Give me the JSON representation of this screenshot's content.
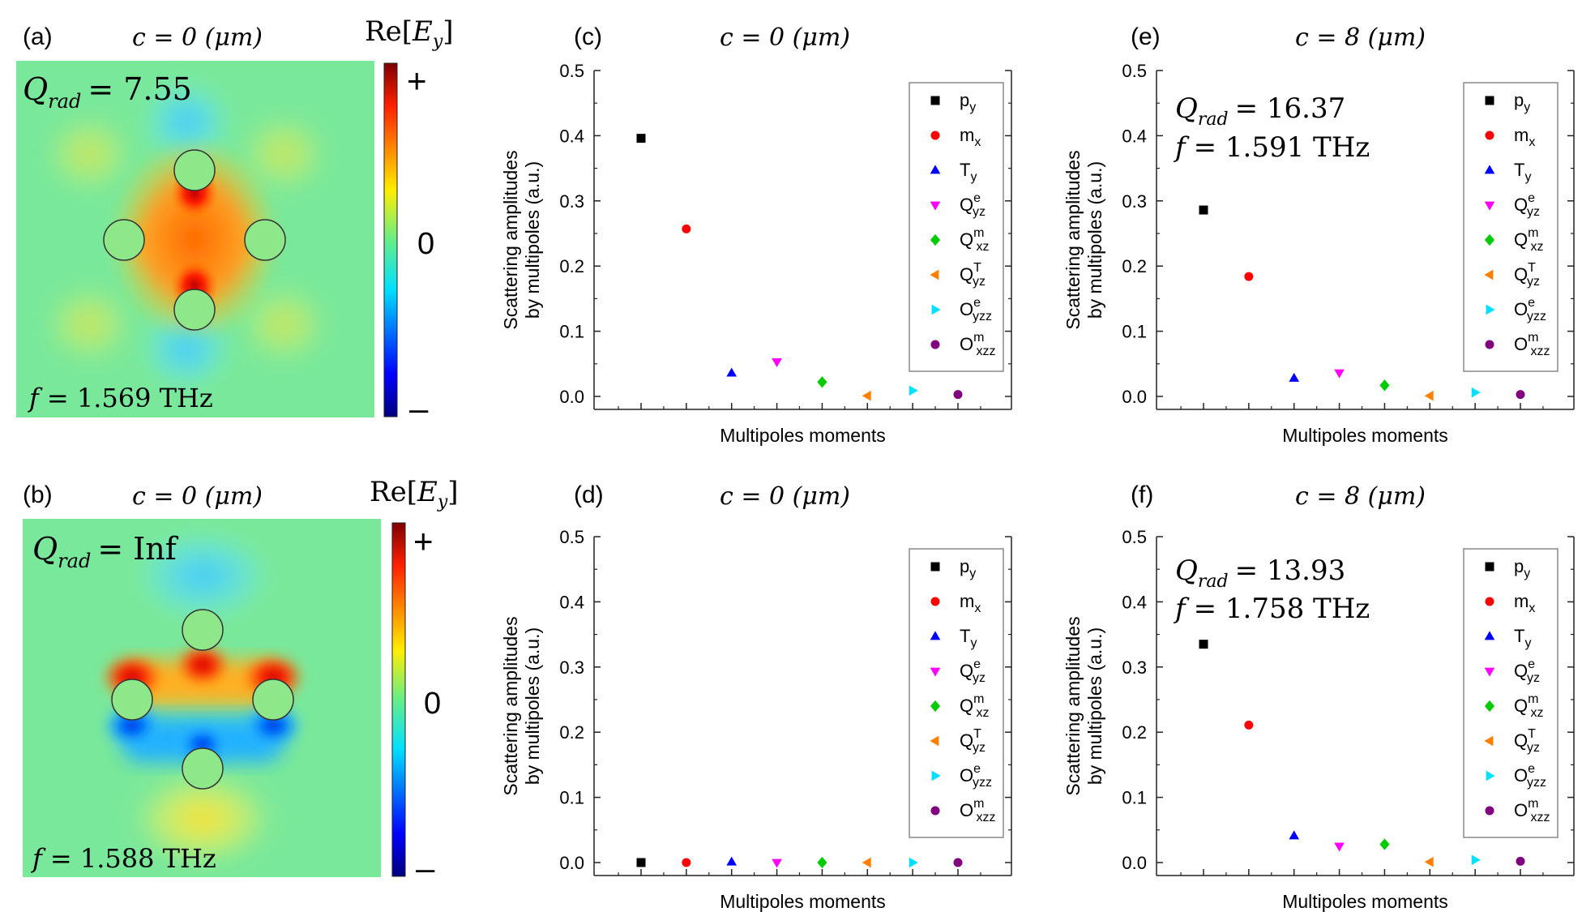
{
  "figure": {
    "panels": {
      "a": {
        "label": "(a)",
        "title": "c = 0 (μm)",
        "q_symbol": "Q",
        "q_sub": "rad",
        "q_value": "= 7.55",
        "f_symbol": "f",
        "f_value": "= 1.569 THz",
        "colorbar": {
          "title_pre": "Re[",
          "title_sym": "E",
          "title_sub": "y",
          "title_post": "]",
          "plus": "+",
          "zero": "0",
          "minus": "–"
        }
      },
      "b": {
        "label": "(b)",
        "title": "c = 0 (μm)",
        "q_symbol": "Q",
        "q_sub": "rad",
        "q_value": "= Inf",
        "f_symbol": "f",
        "f_value": "= 1.588 THz",
        "colorbar": {
          "title_pre": "Re[",
          "title_sym": "E",
          "title_sub": "y",
          "title_post": "]",
          "plus": "+",
          "zero": "0",
          "minus": "–"
        }
      },
      "c": {
        "label": "(c)",
        "title": "c = 0 (μm)"
      },
      "d": {
        "label": "(d)",
        "title": "c = 0 (μm)"
      },
      "e": {
        "label": "(e)",
        "title": "c = 8 (μm)",
        "q_symbol": "Q",
        "q_sub": "rad",
        "q_value": "= 16.37",
        "f_symbol": "f",
        "f_value": "= 1.591 THz"
      },
      "f": {
        "label": "(f)",
        "title": "c = 8 (μm)",
        "q_symbol": "Q",
        "q_sub": "rad",
        "q_value": "= 13.93",
        "f_symbol": "f",
        "f_value": "= 1.758 THz"
      }
    },
    "legend": [
      {
        "base": "p",
        "sub": "y",
        "sup": "",
        "color": "#000000",
        "marker": "square"
      },
      {
        "base": "m",
        "sub": "x",
        "sup": "",
        "color": "#ff0000",
        "marker": "circle"
      },
      {
        "base": "T",
        "sub": "y",
        "sup": "",
        "color": "#0000ff",
        "marker": "triangle-up"
      },
      {
        "base": "Q",
        "sub": "yz",
        "sup": "e",
        "color": "#ff00ff",
        "marker": "triangle-down"
      },
      {
        "base": "Q",
        "sub": "xz",
        "sup": "m",
        "color": "#00cc00",
        "marker": "diamond"
      },
      {
        "base": "Q",
        "sub": "yz",
        "sup": "T",
        "color": "#ff8000",
        "marker": "triangle-left"
      },
      {
        "base": "O",
        "sub": "yzz",
        "sup": "e",
        "color": "#00e0ff",
        "marker": "triangle-right"
      },
      {
        "base": "O",
        "sub": "xzz",
        "sup": "m",
        "color": "#800080",
        "marker": "circle"
      }
    ]
  },
  "chart_data": [
    {
      "panel": "c",
      "type": "scatter",
      "title": "c = 0 (μm)",
      "xlabel": "Multipoles moments",
      "ylabel_line1": "Scattering amplitudes",
      "ylabel_line2": "by multipoles (a.u.)",
      "ylim": [
        0,
        0.5
      ],
      "yticks": [
        "0.0",
        "0.1",
        "0.2",
        "0.3",
        "0.4",
        "0.5"
      ],
      "series": [
        "p_y",
        "m_x",
        "T_y",
        "Q_yz^e",
        "Q_xz^m",
        "Q_yz^T",
        "O_yzz^e",
        "O_xzz^m"
      ],
      "values": [
        0.396,
        0.257,
        0.036,
        0.053,
        0.022,
        0.001,
        0.009,
        0.003
      ]
    },
    {
      "panel": "e",
      "type": "scatter",
      "title": "c = 8 (μm)",
      "xlabel": "Multipoles moments",
      "ylabel_line1": "Scattering amplitudes",
      "ylabel_line2": "by multipoles (a.u.)",
      "ylim": [
        0,
        0.5
      ],
      "yticks": [
        "0.0",
        "0.1",
        "0.2",
        "0.3",
        "0.4",
        "0.5"
      ],
      "series": [
        "p_y",
        "m_x",
        "T_y",
        "Q_yz^e",
        "Q_xz^m",
        "Q_yz^T",
        "O_yzz^e",
        "O_xzz^m"
      ],
      "values": [
        0.286,
        0.184,
        0.028,
        0.036,
        0.017,
        0.001,
        0.006,
        0.003
      ]
    },
    {
      "panel": "d",
      "type": "scatter",
      "title": "c = 0 (μm)",
      "xlabel": "Multipoles moments",
      "ylabel_line1": "Scattering amplitudes",
      "ylabel_line2": "by multipoles (a.u.)",
      "ylim": [
        0,
        0.5
      ],
      "yticks": [
        "0.0",
        "0.1",
        "0.2",
        "0.3",
        "0.4",
        "0.5"
      ],
      "series": [
        "p_y",
        "m_x",
        "T_y",
        "Q_yz^e",
        "Q_xz^m",
        "Q_yz^T",
        "O_yzz^e",
        "O_xzz^m"
      ],
      "values": [
        0.0,
        0.0,
        0.001,
        0.0,
        0.0,
        0.0,
        0.0,
        0.0
      ]
    },
    {
      "panel": "f",
      "type": "scatter",
      "title": "c = 8 (μm)",
      "xlabel": "Multipoles moments",
      "ylabel_line1": "Scattering amplitudes",
      "ylabel_line2": "by multipoles (a.u.)",
      "ylim": [
        0,
        0.5
      ],
      "yticks": [
        "0.0",
        "0.1",
        "0.2",
        "0.3",
        "0.4",
        "0.5"
      ],
      "series": [
        "p_y",
        "m_x",
        "T_y",
        "Q_yz^e",
        "Q_xz^m",
        "Q_yz^T",
        "O_yzz^e",
        "O_xzz^m"
      ],
      "values": [
        0.335,
        0.211,
        0.041,
        0.025,
        0.028,
        0.001,
        0.004,
        0.002
      ]
    }
  ]
}
